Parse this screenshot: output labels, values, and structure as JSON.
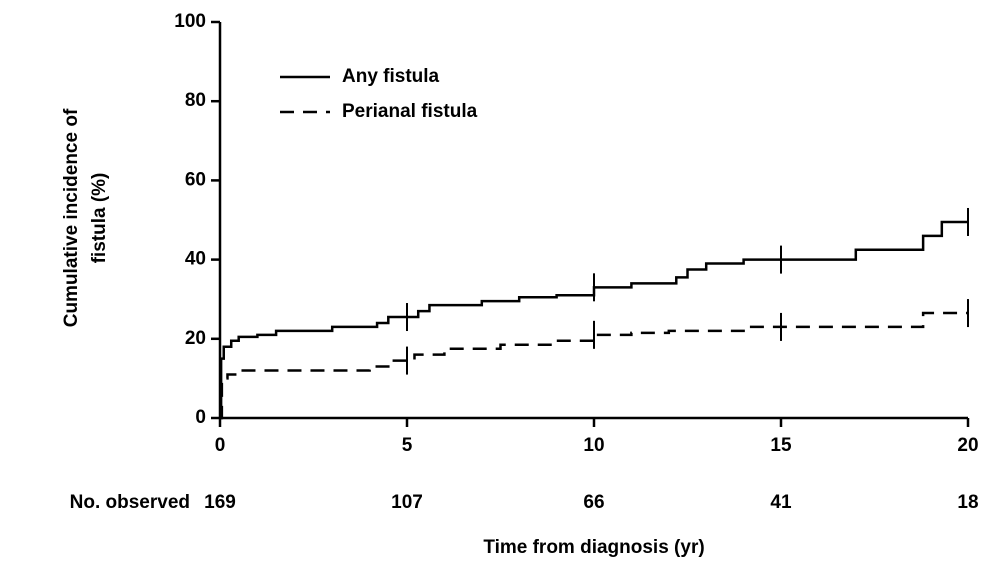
{
  "chart_data": {
    "type": "step",
    "ylabel": [
      "Cumulative incidence of",
      "fistula (%)"
    ],
    "xlabel": "Time from diagnosis (yr)",
    "xlim": [
      0,
      20
    ],
    "xticks": [
      0,
      5,
      10,
      15,
      20
    ],
    "ylim": [
      0,
      100
    ],
    "yticks": [
      0,
      20,
      40,
      60,
      80,
      100
    ],
    "legend": "upper left",
    "series": [
      {
        "name": "Any fistula",
        "color": "#000000",
        "dash": "solid",
        "x": [
          0,
          0.03,
          0.1,
          0.3,
          0.5,
          1,
          1.5,
          3,
          4.2,
          4.5,
          5.3,
          5.6,
          7,
          8,
          9,
          10,
          11,
          12.2,
          12.5,
          13,
          14,
          17,
          18.8,
          19.3,
          20
        ],
        "values": [
          0,
          15,
          18,
          19.5,
          20.5,
          21,
          22,
          23,
          24,
          25.5,
          27,
          28.5,
          29.5,
          30.5,
          31,
          33,
          34,
          35.5,
          37.5,
          39,
          40,
          42.5,
          46,
          49.5,
          49.5
        ],
        "censor_x": [
          5,
          10,
          15,
          20
        ]
      },
      {
        "name": "Perianal fistula",
        "color": "#000000",
        "dash": "dashed",
        "x": [
          0,
          0.05,
          0.2,
          0.5,
          4,
          4.5,
          5.2,
          6,
          7.5,
          9,
          10,
          11,
          12,
          14,
          18.8,
          20
        ],
        "values": [
          0,
          10,
          11,
          12,
          13,
          14.5,
          16,
          17.5,
          18.5,
          19.5,
          21,
          21.5,
          22,
          23,
          26.5,
          26.5
        ],
        "censor_x": [
          5,
          10,
          15,
          20
        ]
      }
    ],
    "number_observed": {
      "label": "No. observed",
      "values": [
        169,
        107,
        66,
        41,
        18
      ]
    }
  }
}
